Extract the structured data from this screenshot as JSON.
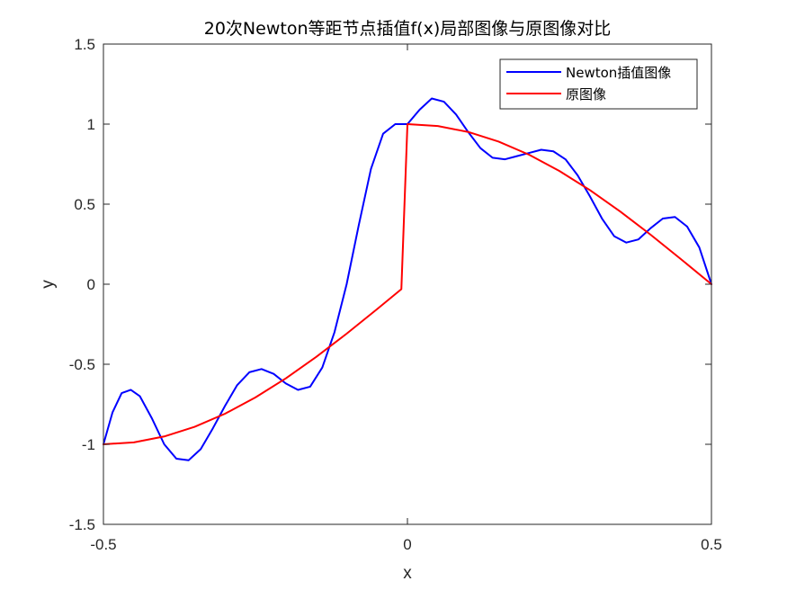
{
  "chart_data": {
    "type": "line",
    "title": "20次Newton等距节点插值f(x)局部图像与原图像对比",
    "xlabel": "x",
    "ylabel": "y",
    "xlim": [
      -0.5,
      0.5
    ],
    "ylim": [
      -1.5,
      1.5
    ],
    "xticks": [
      -0.5,
      0,
      0.5
    ],
    "xtick_labels": [
      "-0.5",
      "0",
      "0.5"
    ],
    "yticks": [
      -1.5,
      -1,
      -0.5,
      0,
      0.5,
      1,
      1.5
    ],
    "ytick_labels": [
      "-1.5",
      "-1",
      "-0.5",
      "0",
      "0.5",
      "1",
      "1.5"
    ],
    "grid": false,
    "legend_position": "top-right",
    "series": [
      {
        "name": "Newton插值图像",
        "color": "#0000ff",
        "x": [
          -0.5,
          -0.485,
          -0.47,
          -0.455,
          -0.44,
          -0.42,
          -0.4,
          -0.38,
          -0.36,
          -0.34,
          -0.32,
          -0.3,
          -0.28,
          -0.26,
          -0.24,
          -0.22,
          -0.2,
          -0.18,
          -0.16,
          -0.14,
          -0.12,
          -0.1,
          -0.08,
          -0.06,
          -0.04,
          -0.02,
          0.0,
          0.02,
          0.04,
          0.06,
          0.08,
          0.1,
          0.12,
          0.14,
          0.16,
          0.18,
          0.2,
          0.22,
          0.24,
          0.26,
          0.28,
          0.3,
          0.32,
          0.34,
          0.36,
          0.38,
          0.4,
          0.42,
          0.44,
          0.46,
          0.48,
          0.5
        ],
        "y": [
          -1.0,
          -0.8,
          -0.68,
          -0.66,
          -0.7,
          -0.84,
          -1.0,
          -1.09,
          -1.1,
          -1.03,
          -0.9,
          -0.76,
          -0.63,
          -0.55,
          -0.53,
          -0.56,
          -0.62,
          -0.66,
          -0.64,
          -0.52,
          -0.3,
          0.0,
          0.37,
          0.72,
          0.94,
          1.0,
          1.0,
          1.09,
          1.16,
          1.14,
          1.06,
          0.95,
          0.85,
          0.79,
          0.78,
          0.8,
          0.82,
          0.84,
          0.83,
          0.78,
          0.68,
          0.55,
          0.41,
          0.3,
          0.26,
          0.28,
          0.35,
          0.41,
          0.42,
          0.36,
          0.23,
          0.0
        ]
      },
      {
        "name": "原图像",
        "color": "#ff0000",
        "x": [
          -0.5,
          -0.45,
          -0.4,
          -0.35,
          -0.3,
          -0.25,
          -0.2,
          -0.15,
          -0.1,
          -0.05,
          -0.01,
          0.0,
          0.05,
          0.1,
          0.15,
          0.2,
          0.25,
          0.3,
          0.35,
          0.4,
          0.45,
          0.5
        ],
        "y": [
          -1.0,
          -0.988,
          -0.951,
          -0.891,
          -0.809,
          -0.707,
          -0.588,
          -0.454,
          -0.309,
          -0.156,
          -0.031,
          1.0,
          0.988,
          0.951,
          0.891,
          0.809,
          0.707,
          0.588,
          0.454,
          0.309,
          0.156,
          0.0
        ]
      }
    ]
  }
}
